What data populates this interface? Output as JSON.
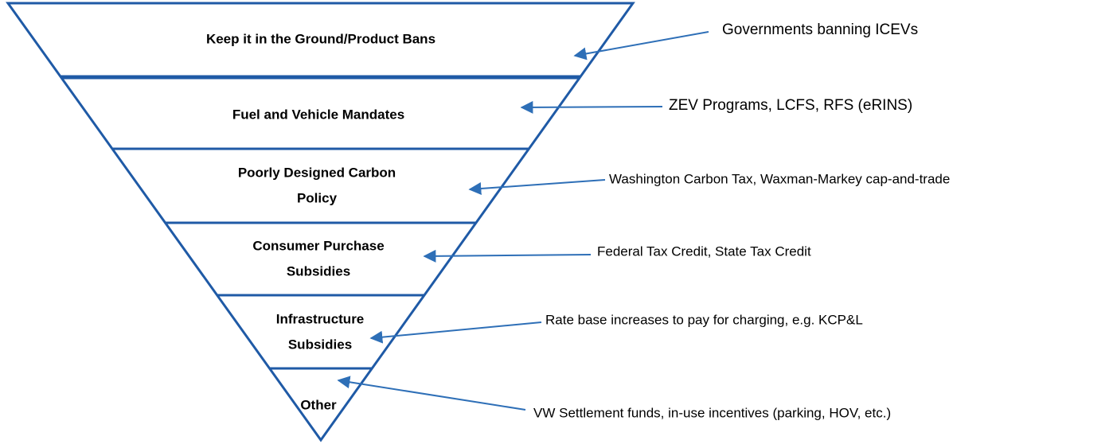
{
  "levels": [
    {
      "label": [
        "Keep it in the Ground/Product Bans"
      ],
      "annotation": "Governments banning ICEVs"
    },
    {
      "label": [
        "Fuel and Vehicle Mandates"
      ],
      "annotation": "ZEV Programs, LCFS, RFS (eRINS)"
    },
    {
      "label": [
        "Poorly Designed Carbon",
        "Policy"
      ],
      "annotation": "Washington Carbon Tax, Waxman-Markey cap-and-trade"
    },
    {
      "label": [
        "Consumer Purchase",
        "Subsidies"
      ],
      "annotation": "Federal Tax Credit, State Tax Credit"
    },
    {
      "label": [
        "Infrastructure",
        "Subsidies"
      ],
      "annotation": "Rate base increases to pay for charging, e.g. KCP&L"
    },
    {
      "label": [
        "Other"
      ],
      "annotation": "VW Settlement funds, in-use incentives (parking, HOV, etc.)"
    }
  ]
}
